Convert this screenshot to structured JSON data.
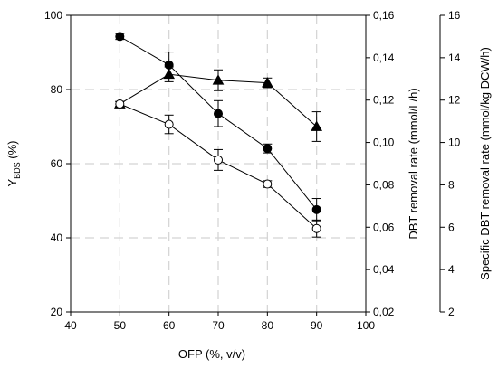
{
  "chart_data": {
    "type": "scatter",
    "x_axis": {
      "label": "OFP (%, v/v)",
      "min": 40,
      "max": 100,
      "ticks": [
        40,
        50,
        60,
        70,
        80,
        90,
        100
      ]
    },
    "y_left": {
      "label_main": "Y",
      "label_sub": "BDS",
      "label_suffix": " (%)",
      "min": 20,
      "max": 100,
      "ticks": [
        20,
        40,
        60,
        80,
        100
      ]
    },
    "y_right1": {
      "label": "DBT removal rate (mmol/L/h)",
      "min": 0.02,
      "max": 0.16,
      "ticks": [
        "0,02",
        "0,04",
        "0,06",
        "0,08",
        "0,10",
        "0,12",
        "0,14",
        "0,16"
      ],
      "tick_values": [
        0.02,
        0.04,
        0.06,
        0.08,
        0.1,
        0.12,
        0.14,
        0.16
      ]
    },
    "y_right2": {
      "label": "Specific DBT removal rate (mmol/kg DCW/h)",
      "min": 2,
      "max": 16,
      "ticks": [
        2,
        4,
        6,
        8,
        10,
        12,
        14,
        16
      ]
    },
    "grid": true,
    "series": [
      {
        "marker": "circle-filled",
        "axis": "y_left",
        "x": [
          50,
          60,
          70,
          80,
          90
        ],
        "y": [
          94.3,
          86.6,
          73.5,
          64.1,
          47.6
        ],
        "err": [
          0.8,
          3.5,
          3.5,
          1.2,
          3.0
        ]
      },
      {
        "marker": "triangle-filled",
        "axis": "y_left",
        "x": [
          50,
          60,
          70,
          80,
          90
        ],
        "y": [
          76.1,
          84.1,
          82.5,
          81.8,
          70.0
        ],
        "err": [
          0.7,
          2.0,
          2.8,
          1.3,
          4.0
        ]
      },
      {
        "marker": "circle-open",
        "axis": "y_left",
        "x": [
          50,
          60,
          70,
          80,
          90
        ],
        "y": [
          76.1,
          70.6,
          61.0,
          54.5,
          42.5
        ],
        "err": [
          0.6,
          2.5,
          2.8,
          0.9,
          2.3
        ]
      }
    ]
  }
}
